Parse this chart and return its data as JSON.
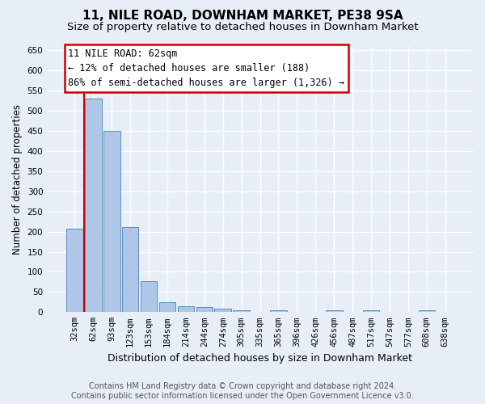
{
  "title": "11, NILE ROAD, DOWNHAM MARKET, PE38 9SA",
  "subtitle": "Size of property relative to detached houses in Downham Market",
  "xlabel": "Distribution of detached houses by size in Downham Market",
  "ylabel": "Number of detached properties",
  "categories": [
    "32sqm",
    "62sqm",
    "93sqm",
    "123sqm",
    "153sqm",
    "184sqm",
    "214sqm",
    "244sqm",
    "274sqm",
    "305sqm",
    "335sqm",
    "365sqm",
    "396sqm",
    "426sqm",
    "456sqm",
    "487sqm",
    "517sqm",
    "547sqm",
    "577sqm",
    "608sqm",
    "638sqm"
  ],
  "values": [
    207,
    530,
    450,
    212,
    77,
    25,
    15,
    12,
    9,
    4,
    0,
    5,
    0,
    0,
    4,
    0,
    5,
    0,
    0,
    4,
    0
  ],
  "bar_color": "#aec6e8",
  "bar_edge_color": "#5b8db8",
  "annotation_bar_index": 1,
  "annotation_text_line1": "11 NILE ROAD: 62sqm",
  "annotation_text_line2": "← 12% of detached houses are smaller (188)",
  "annotation_text_line3": "86% of semi-detached houses are larger (1,326) →",
  "vline_color": "#cc0000",
  "annotation_box_facecolor": "#ffffff",
  "annotation_box_edgecolor": "#cc0000",
  "ylim": [
    0,
    660
  ],
  "yticks": [
    0,
    50,
    100,
    150,
    200,
    250,
    300,
    350,
    400,
    450,
    500,
    550,
    600,
    650
  ],
  "footer_line1": "Contains HM Land Registry data © Crown copyright and database right 2024.",
  "footer_line2": "Contains public sector information licensed under the Open Government Licence v3.0.",
  "background_color": "#e8eef8",
  "grid_color": "#ffffff",
  "title_fontsize": 11,
  "subtitle_fontsize": 9.5,
  "xlabel_fontsize": 9,
  "ylabel_fontsize": 8.5,
  "tick_fontsize": 7.5,
  "footer_fontsize": 7,
  "annotation_fontsize": 8.5
}
